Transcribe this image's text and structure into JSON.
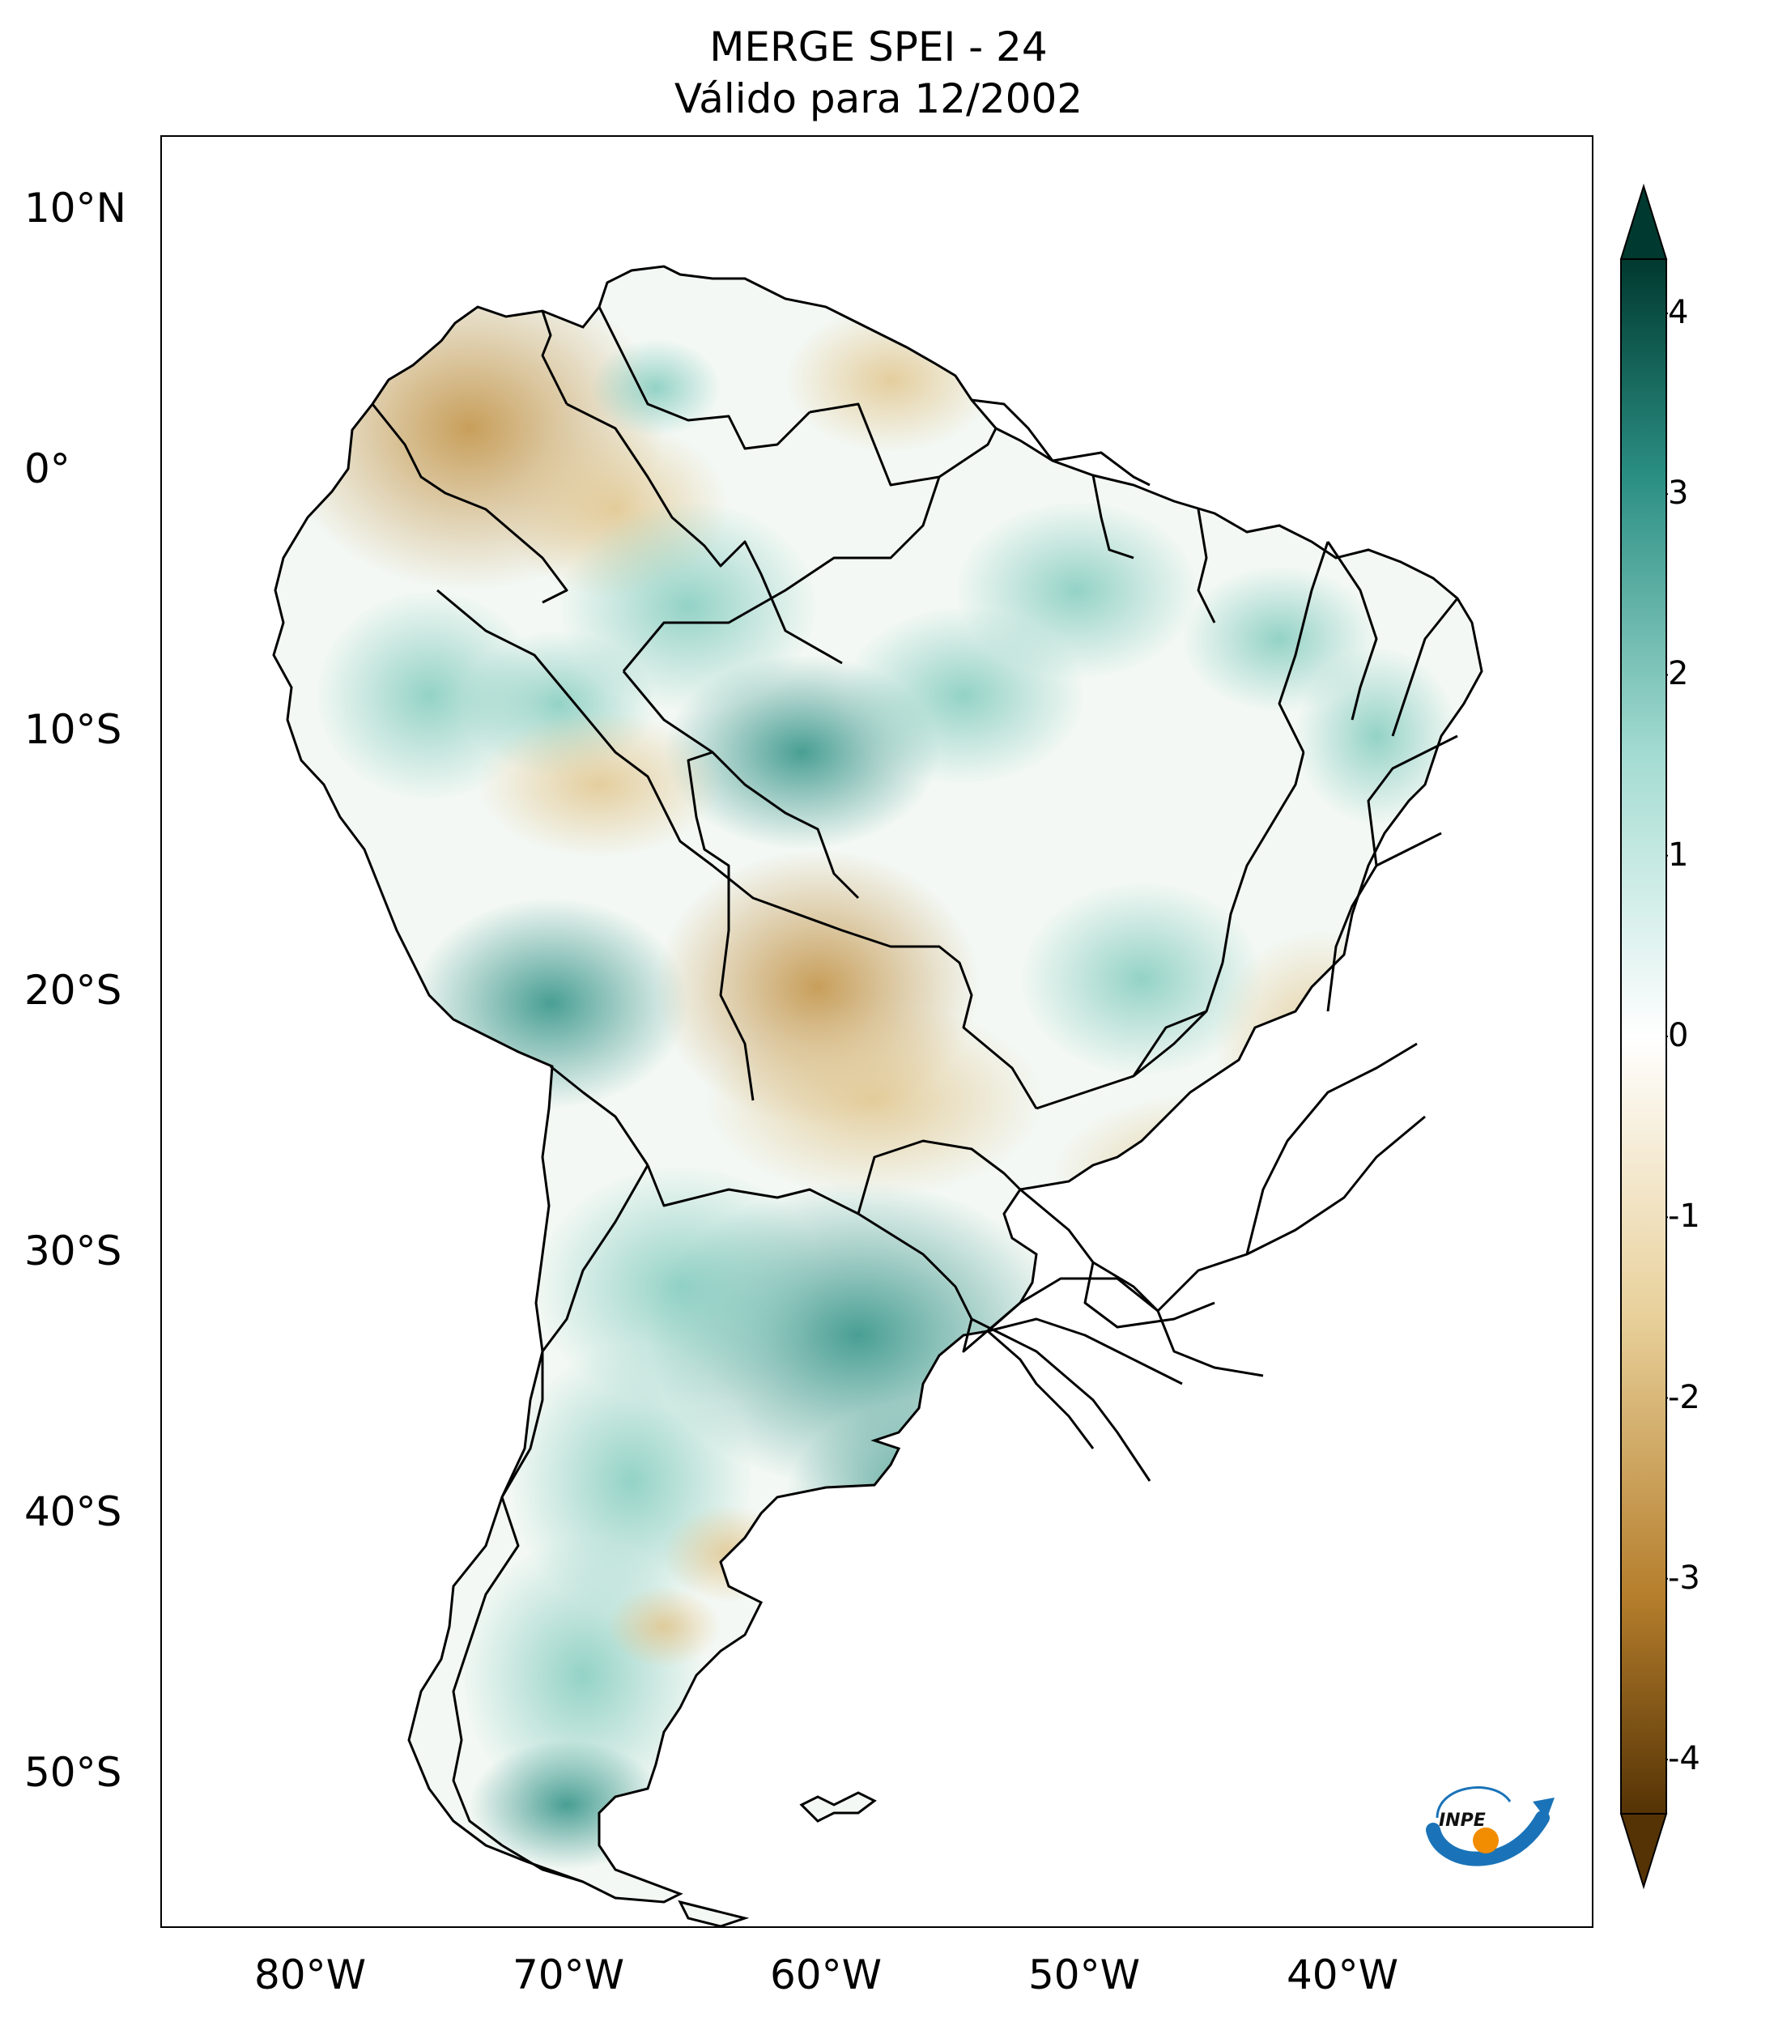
{
  "title": {
    "line1": "MERGE   SPEI - 24",
    "line2": "Válido para 12/2002"
  },
  "axes": {
    "lat_labels": [
      "10°N",
      "0°",
      "10°S",
      "20°S",
      "30°S",
      "40°S",
      "50°S"
    ],
    "lon_labels": [
      "80°W",
      "70°W",
      "60°W",
      "50°W",
      "40°W"
    ]
  },
  "colorbar": {
    "tick_labels": [
      "4",
      "3",
      "2",
      "1",
      "0",
      "-1",
      "-2",
      "-3",
      "-4"
    ],
    "range": [
      -4,
      4
    ],
    "colors": {
      "max": "#00392f",
      "high": "#2b8f83",
      "mid_high": "#a4dcd2",
      "zero": "#ffffff",
      "mid_low": "#e8d09a",
      "low": "#b57e2c",
      "min": "#553305"
    }
  },
  "logo": {
    "text": "INPE"
  },
  "colors": {
    "wet": "#5fb8a8",
    "dry": "#d2a860",
    "border": "#000000"
  }
}
